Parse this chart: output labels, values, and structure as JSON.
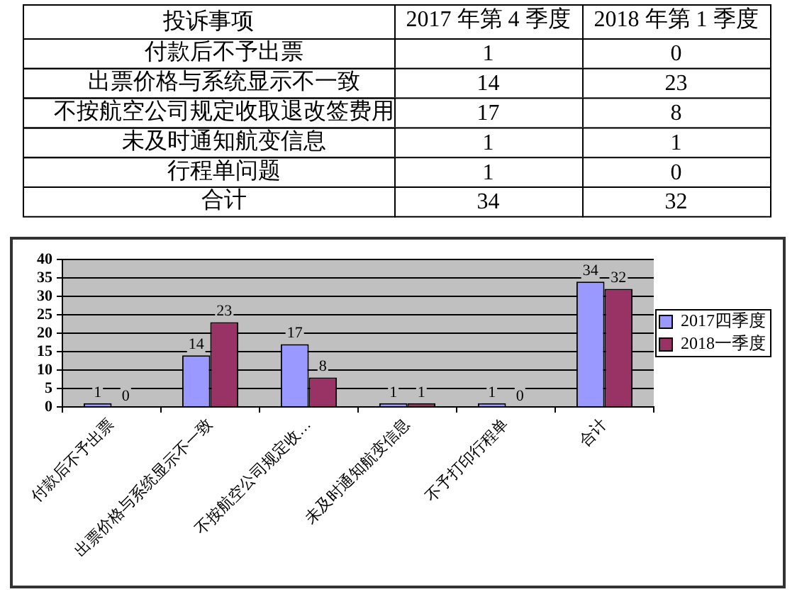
{
  "chart_data": [
    {
      "type": "heatmap",
      "ylabel": "投诉事项",
      "categories": [
        "2017 年第 4 季度",
        "2018 年第 1 季度"
      ],
      "y_categories": [
        "付款后不予出票",
        "出票价格与系统显示不一致",
        "不按航空公司规定收取退改签费用",
        "未及时通知航变信息",
        "行程单问题",
        "合计"
      ],
      "cells": [
        [
          1,
          0
        ],
        [
          14,
          23
        ],
        [
          17,
          8
        ],
        [
          1,
          1
        ],
        [
          1,
          0
        ],
        [
          34,
          32
        ]
      ],
      "data_labels": true
    },
    {
      "type": "bar",
      "categories": [
        "付款后不予出票",
        "出票价格与系统显示不一致",
        "不按航空公司规定收…",
        "未及时通知航变信息",
        "不予打印行程单",
        "合计"
      ],
      "series": [
        {
          "name": "2017四季度",
          "color": "#9999ff",
          "values": [
            1,
            14,
            17,
            1,
            1,
            34
          ]
        },
        {
          "name": "2018一季度",
          "color": "#993366",
          "values": [
            0,
            23,
            8,
            1,
            0,
            32
          ]
        }
      ],
      "ylim": [
        0,
        40
      ],
      "yticks": [
        0,
        5,
        10,
        15,
        20,
        25,
        30,
        35,
        40
      ],
      "grid": "y",
      "legend": "right",
      "data_labels": true
    }
  ]
}
